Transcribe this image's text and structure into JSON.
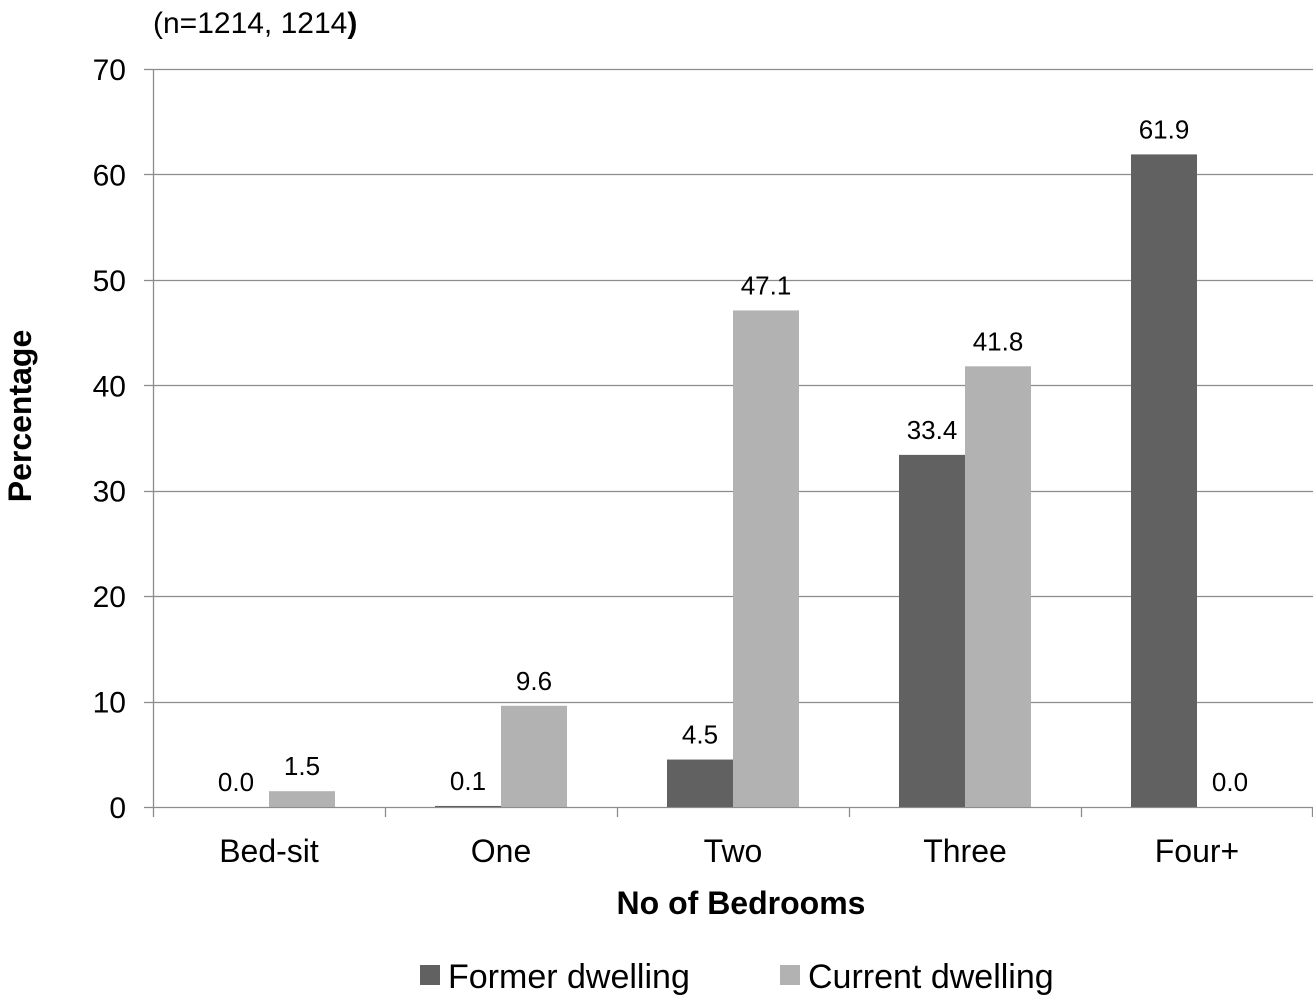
{
  "chart_data": {
    "type": "bar",
    "subtitle": "(n=1214, 1214",
    "subtitle_close": ")",
    "xlabel": "No of Bedrooms",
    "ylabel": "Percentage",
    "ylim": [
      0,
      70
    ],
    "yticks": [
      0,
      10,
      20,
      30,
      40,
      50,
      60,
      70
    ],
    "grid": "horizontal",
    "legend_position": "bottom",
    "categories": [
      "Bed-sit",
      "One",
      "Two",
      "Three",
      "Four+"
    ],
    "series": [
      {
        "name": "Former dwelling",
        "color": "#616161",
        "values": [
          0.0,
          0.1,
          4.5,
          33.4,
          61.9
        ],
        "labels": [
          "0.0",
          "0.1",
          "4.5",
          "33.4",
          "61.9"
        ]
      },
      {
        "name": "Current dwelling",
        "color": "#b2b2b2",
        "values": [
          1.5,
          9.6,
          47.1,
          41.8,
          0.0
        ],
        "labels": [
          "1.5",
          "9.6",
          "47.1",
          "41.8",
          "0.0"
        ]
      }
    ]
  }
}
